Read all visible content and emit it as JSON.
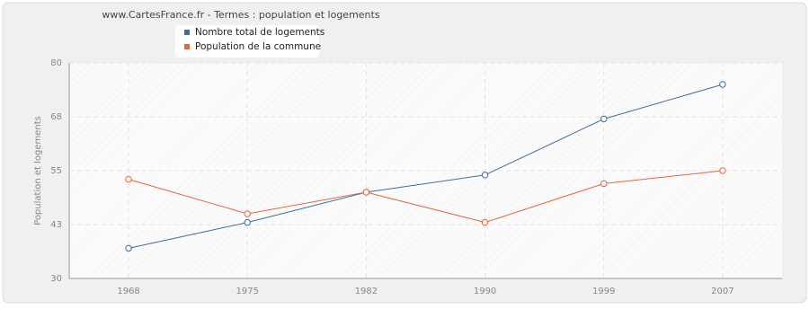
{
  "chart_data": {
    "type": "line",
    "title": "www.CartesFrance.fr - Termes : population et logements",
    "y_label": "Population et logements",
    "categories": [
      "1968",
      "1975",
      "1982",
      "1990",
      "1999",
      "2007"
    ],
    "series": [
      {
        "name": "Nombre total de logements",
        "color": "#3f6d9b",
        "values": [
          37,
          43,
          50,
          54,
          67,
          75
        ]
      },
      {
        "name": "Population de la commune",
        "color": "#e0683c",
        "values": [
          53,
          45,
          50,
          43,
          52,
          55
        ]
      }
    ],
    "ylim": [
      30,
      80
    ],
    "yticks": [
      30,
      {
        "value": 42.5,
        "label": "43"
      },
      55,
      {
        "value": 67.5,
        "label": "68"
      },
      80
    ],
    "grid": true
  }
}
